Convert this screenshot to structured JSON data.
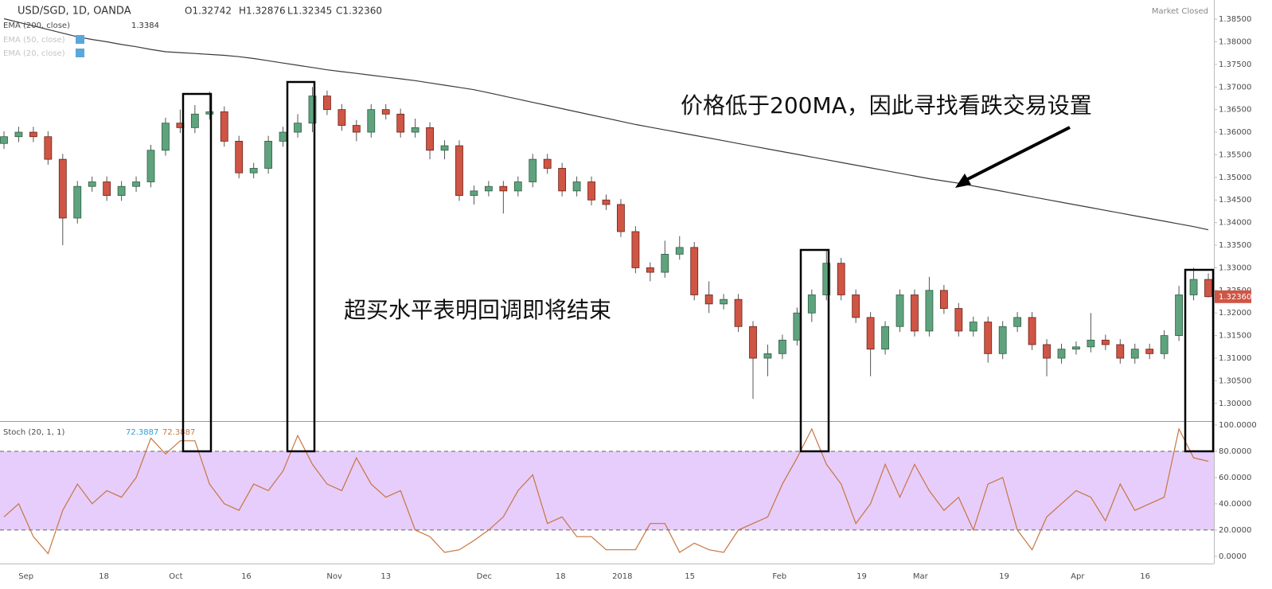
{
  "chart_data": [
    {
      "type": "candlestick",
      "title": "USD/SGD, 1D, OANDA",
      "ohlc_legend": [
        "O1.32742",
        "H1.32876",
        "L1.32345",
        "C1.32360"
      ],
      "status": "Market Closed",
      "up_color": "#5fa37e",
      "down_color": "#cf5545",
      "categories": [
        null,
        null,
        null,
        null,
        null,
        null,
        null,
        null,
        null,
        null,
        null,
        null,
        null,
        null,
        null,
        null,
        null,
        null,
        null,
        null,
        null,
        null,
        null,
        null,
        null,
        null,
        null,
        null,
        null,
        null,
        null,
        null,
        null,
        null,
        null,
        null,
        null,
        null,
        null,
        null,
        null,
        null,
        null,
        null,
        null,
        null,
        null,
        null,
        null,
        null,
        null,
        null,
        null,
        null,
        null,
        null,
        null,
        null,
        null,
        null,
        null,
        null,
        null,
        null,
        null,
        null,
        null,
        null,
        null,
        null,
        null,
        null,
        null,
        null,
        null,
        null,
        null,
        null,
        null,
        null,
        null,
        null,
        null
      ],
      "open": [
        1.3575,
        1.359,
        1.36,
        1.359,
        1.354,
        1.341,
        1.348,
        1.349,
        1.346,
        1.348,
        1.349,
        1.356,
        1.362,
        1.361,
        1.364,
        1.3645,
        1.358,
        1.351,
        1.352,
        1.358,
        1.36,
        1.362,
        1.368,
        1.365,
        1.3615,
        1.36,
        1.365,
        1.364,
        1.36,
        1.361,
        1.356,
        1.357,
        1.346,
        1.347,
        1.348,
        1.347,
        1.349,
        1.354,
        1.352,
        1.347,
        1.349,
        1.345,
        1.344,
        1.338,
        1.33,
        1.329,
        1.333,
        1.3345,
        1.324,
        1.322,
        1.323,
        1.317,
        1.31,
        1.311,
        1.314,
        1.32,
        1.324,
        1.331,
        1.324,
        1.319,
        1.312,
        1.317,
        1.324,
        1.316,
        1.325,
        1.321,
        1.316,
        1.318,
        1.311,
        1.317,
        1.319,
        1.313,
        1.31,
        1.312,
        1.3125,
        1.314,
        1.313,
        1.31,
        1.312,
        1.311,
        1.315,
        1.324,
        1.32742
      ],
      "high": [
        1.3602,
        1.3612,
        1.3612,
        1.3602,
        1.3552,
        1.3492,
        1.3502,
        1.3502,
        1.3492,
        1.3502,
        1.3572,
        1.3632,
        1.365,
        1.366,
        1.369,
        1.3657,
        1.3592,
        1.3532,
        1.3592,
        1.3612,
        1.364,
        1.37,
        1.3692,
        1.3662,
        1.3627,
        1.3662,
        1.3662,
        1.3652,
        1.363,
        1.3622,
        1.3582,
        1.3582,
        1.3482,
        1.3492,
        1.3492,
        1.3502,
        1.3552,
        1.3552,
        1.3532,
        1.3502,
        1.3502,
        1.3462,
        1.3452,
        1.3392,
        1.3312,
        1.336,
        1.337,
        1.3357,
        1.327,
        1.3242,
        1.3242,
        1.3182,
        1.313,
        1.3152,
        1.3212,
        1.3252,
        1.334,
        1.3322,
        1.3252,
        1.3202,
        1.3182,
        1.3252,
        1.3252,
        1.328,
        1.3262,
        1.3222,
        1.3192,
        1.3192,
        1.3182,
        1.3202,
        1.3202,
        1.3142,
        1.3132,
        1.3137,
        1.32,
        1.3152,
        1.3142,
        1.3132,
        1.3132,
        1.3162,
        1.326,
        1.33,
        1.32876
      ],
      "low": [
        1.3563,
        1.3578,
        1.3578,
        1.3528,
        1.335,
        1.3398,
        1.3468,
        1.3448,
        1.3448,
        1.3468,
        1.3478,
        1.3548,
        1.3598,
        1.3598,
        1.3628,
        1.3568,
        1.3498,
        1.3498,
        1.3508,
        1.3568,
        1.3588,
        1.36,
        1.3638,
        1.3603,
        1.358,
        1.3588,
        1.3628,
        1.3588,
        1.3588,
        1.354,
        1.354,
        1.3448,
        1.344,
        1.3458,
        1.342,
        1.3458,
        1.3478,
        1.3508,
        1.3458,
        1.3458,
        1.3438,
        1.3428,
        1.3368,
        1.3288,
        1.327,
        1.3278,
        1.3318,
        1.3228,
        1.32,
        1.3208,
        1.3158,
        1.301,
        1.306,
        1.3098,
        1.3128,
        1.318,
        1.3228,
        1.3228,
        1.3178,
        1.306,
        1.3108,
        1.3158,
        1.3148,
        1.3148,
        1.3198,
        1.3148,
        1.3148,
        1.309,
        1.3098,
        1.3158,
        1.3118,
        1.306,
        1.3088,
        1.3108,
        1.3113,
        1.3118,
        1.3088,
        1.3088,
        1.3098,
        1.3098,
        1.3138,
        1.3228,
        1.32345
      ],
      "close": [
        1.359,
        1.36,
        1.359,
        1.354,
        1.341,
        1.348,
        1.349,
        1.346,
        1.348,
        1.349,
        1.356,
        1.362,
        1.361,
        1.364,
        1.3645,
        1.358,
        1.351,
        1.352,
        1.358,
        1.36,
        1.362,
        1.368,
        1.365,
        1.3615,
        1.36,
        1.365,
        1.364,
        1.36,
        1.361,
        1.356,
        1.357,
        1.346,
        1.347,
        1.348,
        1.347,
        1.349,
        1.354,
        1.352,
        1.347,
        1.349,
        1.345,
        1.344,
        1.338,
        1.33,
        1.329,
        1.333,
        1.3345,
        1.324,
        1.322,
        1.323,
        1.317,
        1.31,
        1.311,
        1.314,
        1.32,
        1.324,
        1.331,
        1.324,
        1.319,
        1.312,
        1.317,
        1.324,
        1.316,
        1.325,
        1.321,
        1.316,
        1.318,
        1.311,
        1.317,
        1.319,
        1.313,
        1.31,
        1.312,
        1.3125,
        1.314,
        1.313,
        1.31,
        1.312,
        1.311,
        1.315,
        1.324,
        1.32742,
        1.3236
      ],
      "last_price_label": "1.32360",
      "series": [
        {
          "name": "EMA (200, close)",
          "color": "#3a3a3a",
          "values": [
            1.3851,
            1.3843,
            1.3835,
            1.3827,
            1.3819,
            1.3811,
            1.3805,
            1.38,
            1.3794,
            1.3789,
            1.3783,
            1.3778,
            1.3776,
            1.3774,
            1.3772,
            1.377,
            1.3767,
            1.3763,
            1.3758,
            1.3753,
            1.3748,
            1.3743,
            1.3738,
            1.3734,
            1.373,
            1.3726,
            1.3722,
            1.3718,
            1.3714,
            1.3709,
            1.3704,
            1.3699,
            1.3694,
            1.3687,
            1.368,
            1.3673,
            1.3666,
            1.3659,
            1.3652,
            1.3645,
            1.3638,
            1.3631,
            1.3624,
            1.3617,
            1.3611,
            1.3605,
            1.3599,
            1.3593,
            1.3587,
            1.3581,
            1.3575,
            1.3569,
            1.3563,
            1.3557,
            1.3551,
            1.3545,
            1.3539,
            1.3533,
            1.3527,
            1.3521,
            1.3515,
            1.3509,
            1.3503,
            1.3497,
            1.3492,
            1.3487,
            1.3481,
            1.3475,
            1.3469,
            1.3463,
            1.3457,
            1.3451,
            1.3445,
            1.3439,
            1.3433,
            1.3427,
            1.3421,
            1.3415,
            1.3409,
            1.3403,
            1.3397,
            1.3391,
            1.3384
          ]
        }
      ],
      "inactive_legend": [
        "EMA (50, close)",
        "EMA (20, close)"
      ],
      "ylim": [
        1.29609,
        1.38924
      ],
      "yticks": [
        {
          "value": 1.3,
          "label": "1.30000"
        },
        {
          "value": 1.305,
          "label": "1.30500"
        },
        {
          "value": 1.31,
          "label": "1.31000"
        },
        {
          "value": 1.315,
          "label": "1.31500"
        },
        {
          "value": 1.32,
          "label": "1.32000"
        },
        {
          "value": 1.325,
          "label": "1.32500"
        },
        {
          "value": 1.33,
          "label": "1.33000"
        },
        {
          "value": 1.335,
          "label": "1.33500"
        },
        {
          "value": 1.34,
          "label": "1.34000"
        },
        {
          "value": 1.345,
          "label": "1.34500"
        },
        {
          "value": 1.35,
          "label": "1.35000"
        },
        {
          "value": 1.355,
          "label": "1.35500"
        },
        {
          "value": 1.36,
          "label": "1.36000"
        },
        {
          "value": 1.365,
          "label": "1.36500"
        },
        {
          "value": 1.37,
          "label": "1.37000"
        },
        {
          "value": 1.375,
          "label": "1.37500"
        },
        {
          "value": 1.38,
          "label": "1.38000"
        },
        {
          "value": 1.385,
          "label": "1.38500"
        }
      ],
      "xticks": [
        {
          "value": 1.5,
          "label": "Sep"
        },
        {
          "value": 6.8,
          "label": "18"
        },
        {
          "value": 11.7,
          "label": "Oct"
        },
        {
          "value": 16.5,
          "label": "16"
        },
        {
          "value": 22.5,
          "label": "Nov"
        },
        {
          "value": 26,
          "label": "13"
        },
        {
          "value": 32.7,
          "label": "Dec"
        },
        {
          "value": 37.9,
          "label": "18"
        },
        {
          "value": 42.1,
          "label": "2018"
        },
        {
          "value": 46.7,
          "label": "15"
        },
        {
          "value": 52.8,
          "label": "Feb"
        },
        {
          "value": 58.4,
          "label": "19"
        },
        {
          "value": 62.4,
          "label": "Mar"
        },
        {
          "value": 68.1,
          "label": "19"
        },
        {
          "value": 73.1,
          "label": "Apr"
        },
        {
          "value": 77.7,
          "label": "16"
        }
      ],
      "annotations": [
        "价格低于200MA，因此寻找看跌交易设置",
        "超买水平表明回调即将结束"
      ]
    },
    {
      "type": "line",
      "title": "Stoch (20, 1, 1)",
      "series": [
        {
          "name": "Stoch",
          "color": "#c8753f",
          "values": [
            30,
            40,
            15,
            2,
            35,
            55,
            40,
            50,
            45,
            60,
            90,
            78,
            88,
            88,
            55,
            40,
            35,
            55,
            50,
            65,
            92,
            70,
            55,
            50,
            75,
            55,
            45,
            50,
            20,
            15,
            3,
            5,
            12,
            20,
            30,
            50,
            62,
            25,
            30,
            15,
            15,
            5,
            5,
            5,
            25,
            25,
            3,
            10,
            5,
            3,
            20,
            25,
            30,
            55,
            75,
            97,
            70,
            55,
            25,
            40,
            70,
            45,
            70,
            50,
            35,
            45,
            20,
            55,
            60,
            20,
            5,
            30,
            40,
            50,
            45,
            27,
            55,
            35,
            40,
            45,
            97,
            75,
            72.3887
          ]
        }
      ],
      "band": [
        20,
        80
      ],
      "band_color": "#e6cdfb",
      "ylim": [
        -5.5,
        102.4
      ],
      "yticks": [
        {
          "value": 0,
          "label": "0.0000"
        },
        {
          "value": 20,
          "label": "20.0000"
        },
        {
          "value": 40,
          "label": "40.0000"
        },
        {
          "value": 60,
          "label": "60.0000"
        },
        {
          "value": 80,
          "label": "80.0000"
        },
        {
          "value": 100,
          "label": "100.0000"
        }
      ]
    }
  ]
}
